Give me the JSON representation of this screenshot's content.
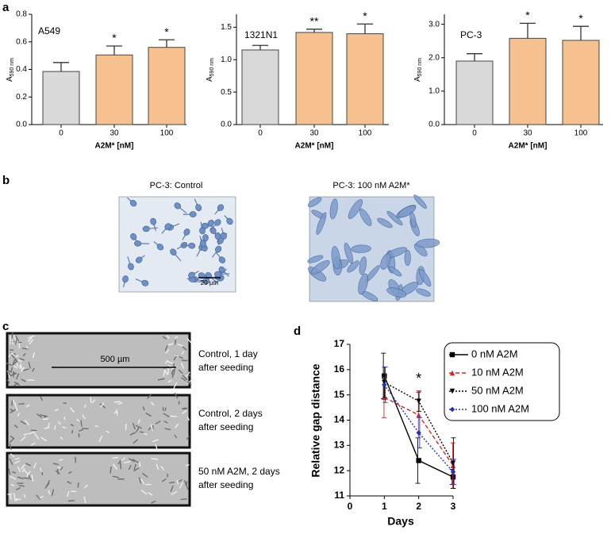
{
  "panel_labels": [
    "a",
    "b",
    "c",
    "d"
  ],
  "chart_data": [
    {
      "type": "bar",
      "title": "A549",
      "y_label": {
        "text": "A",
        "subscript": "590 nm"
      },
      "x_label": "A2M* [nM]",
      "categories": [
        "0",
        "30",
        "100"
      ],
      "values": [
        0.385,
        0.505,
        0.56
      ],
      "errors": [
        0.065,
        0.065,
        0.055
      ],
      "colors": [
        "#d9d9d9",
        "#f6c08f",
        "#f6c08f"
      ],
      "significance": [
        null,
        "*",
        "*"
      ],
      "ylim": [
        0,
        0.8
      ],
      "yticks": [
        {
          "value": 0,
          "label": "0.0"
        },
        0.2,
        0.4,
        0.6,
        0.8
      ]
    },
    {
      "type": "bar",
      "title": "1321N1",
      "y_label": {
        "text": "A",
        "subscript": "590 nm"
      },
      "x_label": "A2M* [nM]",
      "categories": [
        "0",
        "30",
        "100"
      ],
      "values": [
        1.15,
        1.42,
        1.4
      ],
      "errors": [
        0.07,
        0.05,
        0.15
      ],
      "colors": [
        "#d9d9d9",
        "#f6c08f",
        "#f6c08f"
      ],
      "significance": [
        null,
        "**",
        "*"
      ],
      "ylim": [
        0,
        1.7
      ],
      "yticks": [
        {
          "value": 0,
          "label": "0.0"
        },
        0.5,
        {
          "value": 1,
          "label": "1.0"
        },
        1.5
      ]
    },
    {
      "type": "bar",
      "title": "PC-3",
      "y_label": {
        "text": "A",
        "subscript": "590 nm"
      },
      "x_label": "A2M* [nM]",
      "categories": [
        "0",
        "30",
        "100"
      ],
      "values": [
        1.9,
        2.58,
        2.52
      ],
      "errors": [
        0.22,
        0.45,
        0.42
      ],
      "colors": [
        "#d9d9d9",
        "#f6c08f",
        "#f6c08f"
      ],
      "significance": [
        null,
        "*",
        "*"
      ],
      "ylim": [
        0,
        3.3
      ],
      "yticks": [
        {
          "value": 0,
          "label": "0.0"
        },
        {
          "value": 1,
          "label": "1.0"
        },
        {
          "value": 2,
          "label": "2.0"
        },
        {
          "value": 3,
          "label": "3.0"
        }
      ]
    },
    {
      "type": "line",
      "y_label": "Relative gap distance",
      "x_label": "Days",
      "x": [
        1,
        2,
        3
      ],
      "xlim": [
        0,
        3
      ],
      "xticks": [
        0,
        1,
        2,
        3
      ],
      "ylim": [
        11,
        17
      ],
      "yticks": [
        11,
        12,
        13,
        14,
        15,
        16,
        17
      ],
      "annotations": [
        {
          "text": "*",
          "x": 2
        }
      ],
      "series": [
        {
          "name": "0 nM A2M",
          "color": "#000000",
          "dash": "solid",
          "marker": "square",
          "values": [
            15.75,
            12.4,
            11.75
          ],
          "errors": [
            0.9,
            0.9,
            0.3
          ]
        },
        {
          "name": "10 nM A2M",
          "color": "#e02020",
          "dash": "dashed",
          "marker": "triangle-up",
          "values": [
            14.9,
            14.2,
            12.2
          ],
          "errors": [
            0.8,
            0.9,
            0.9
          ]
        },
        {
          "name": "50 nM A2M",
          "color": "#000000",
          "dash": "dotted",
          "marker": "triangle-down",
          "values": [
            15.5,
            14.75,
            12.3
          ],
          "errors": [
            0.6,
            0.4,
            1.0
          ]
        },
        {
          "name": "100 nM A2M",
          "color": "#2030c0",
          "dash": "dotted",
          "marker": "diamond",
          "values": [
            15.4,
            13.5,
            11.95
          ],
          "errors": [
            0.7,
            0.6,
            0.5
          ]
        }
      ]
    }
  ],
  "micrographs_b": [
    {
      "caption": "PC-3: Control",
      "scale_bar": "20 µm"
    },
    {
      "caption": "PC-3: 100 nM A2M*"
    }
  ],
  "micrographs_c": [
    {
      "caption": [
        "Control, 1 day",
        "after seeding"
      ],
      "scale_bar": "500 µm"
    },
    {
      "caption": [
        "Control, 2 days",
        "after seeding"
      ]
    },
    {
      "caption": [
        "50 nM A2M, 2 days",
        "after seeding"
      ]
    }
  ]
}
